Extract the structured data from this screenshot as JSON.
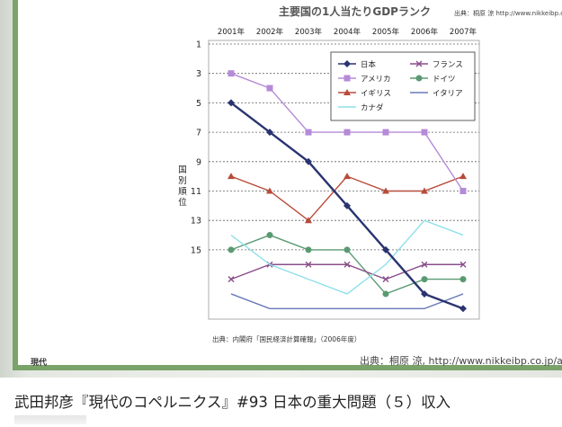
{
  "caption": "武田邦彦『現代のコペルニクス』#93 日本の重大問題（５）収入",
  "logo_text": "現代",
  "chart_data": {
    "type": "line",
    "title": "主要国の1人当たりGDPランク",
    "source_top": "出典：桐原 涼 http://www.nikkeibp.co.jp/artic",
    "note": "出典：内閣府「国民経済計算確報」（2006年度）",
    "source_bottom": "出典：桐原 涼, http://www.nikkeibp.co.jp/artic",
    "ylabel": "国別順位",
    "x": [
      "2001年",
      "2002年",
      "2003年",
      "2004年",
      "2005年",
      "2006年",
      "2007年"
    ],
    "y_ticks": [
      1,
      3,
      5,
      7,
      9,
      11,
      13,
      15
    ],
    "ylim": [
      1,
      19
    ],
    "y_inverted": true,
    "grid": true,
    "legend_position": "top-right",
    "series": [
      {
        "name": "日本",
        "color": "#2a3470",
        "marker": "diamond",
        "values": [
          5,
          7,
          9,
          12,
          15,
          18,
          19
        ]
      },
      {
        "name": "アメリカ",
        "color": "#b58ad8",
        "marker": "square",
        "values": [
          3,
          4,
          7,
          7,
          7,
          7,
          11
        ]
      },
      {
        "name": "イギリス",
        "color": "#b84a3a",
        "marker": "triangle",
        "values": [
          10,
          11,
          13,
          10,
          11,
          11,
          10
        ]
      },
      {
        "name": "カナダ",
        "color": "#8de0ea",
        "marker": "none",
        "values": [
          14,
          16,
          17,
          18,
          16,
          13,
          14
        ]
      },
      {
        "name": "フランス",
        "color": "#8a4e8a",
        "marker": "x",
        "values": [
          17,
          16,
          16,
          16,
          17,
          16,
          16
        ]
      },
      {
        "name": "ドイツ",
        "color": "#5a9a72",
        "marker": "circle",
        "values": [
          15,
          14,
          15,
          15,
          18,
          17,
          17
        ]
      },
      {
        "name": "イタリア",
        "color": "#6a7ab8",
        "marker": "none",
        "values": [
          18,
          19,
          19,
          19,
          19,
          19,
          18
        ]
      }
    ]
  }
}
